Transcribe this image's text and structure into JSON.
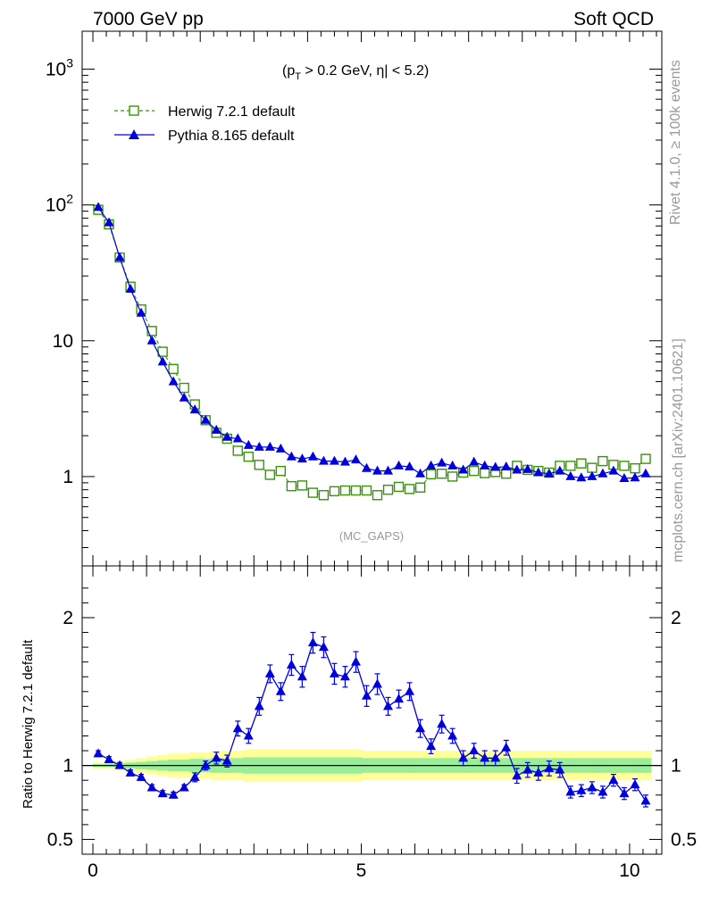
{
  "header": {
    "left": "7000 GeV pp",
    "right": "Soft QCD"
  },
  "side_text": {
    "rivet": "Rivet 4.1.0, ≥ 100k events",
    "mcplots": "mcplots.cern.ch [arXiv:2401.10621]"
  },
  "annotation": {
    "prefix": "(p",
    "sub": "T",
    "suffix": " > 0.2 GeV, η| < 5.2)"
  },
  "watermark": "(MC_GAPS)",
  "legend": {
    "herwig": "Herwig 7.2.1 default",
    "pythia": "Pythia 8.165 default"
  },
  "colors": {
    "herwig": "#339900",
    "pythia": "#0000dd",
    "band_inner": "#99ee99",
    "band_outer": "#ffff99"
  },
  "chart_data": [
    {
      "type": "scatter",
      "panel": "main",
      "yscale": "log",
      "ylim": [
        0.22,
        1900
      ],
      "xlim": [
        -0.2,
        10.6
      ],
      "yticks": [
        {
          "base": "10",
          "exp": "3",
          "value": 1000
        },
        {
          "base": "10",
          "exp": "2",
          "value": 100
        },
        {
          "base": "10",
          "exp": "",
          "value": 10
        },
        {
          "base": "1",
          "exp": "",
          "value": 1
        }
      ],
      "series": [
        {
          "name": "Herwig 7.2.1 default",
          "marker": "open-square",
          "line": "dashed",
          "x": [
            0.1,
            0.3,
            0.5,
            0.7,
            0.9,
            1.1,
            1.3,
            1.5,
            1.7,
            1.9,
            2.1,
            2.3,
            2.5,
            2.7,
            2.9,
            3.1,
            3.3,
            3.5,
            3.7,
            3.9,
            4.1,
            4.3,
            4.5,
            4.7,
            4.9,
            5.1,
            5.3,
            5.5,
            5.7,
            5.9,
            6.1,
            6.3,
            6.5,
            6.7,
            6.9,
            7.1,
            7.3,
            7.5,
            7.7,
            7.9,
            8.1,
            8.3,
            8.5,
            8.7,
            8.9,
            9.1,
            9.3,
            9.5,
            9.7,
            9.9,
            10.1,
            10.3
          ],
          "y": [
            92,
            72,
            41,
            25,
            17,
            11.8,
            8.3,
            6.2,
            4.5,
            3.4,
            2.6,
            2.1,
            1.9,
            1.55,
            1.4,
            1.22,
            1.03,
            1.1,
            0.85,
            0.86,
            0.76,
            0.73,
            0.78,
            0.79,
            0.79,
            0.79,
            0.73,
            0.8,
            0.84,
            0.81,
            0.83,
            1.04,
            1.05,
            1.0,
            1.07,
            1.1,
            1.06,
            1.08,
            1.05,
            1.2,
            1.12,
            1.1,
            1.07,
            1.2,
            1.2,
            1.25,
            1.16,
            1.3,
            1.22,
            1.2,
            1.15,
            1.35
          ]
        },
        {
          "name": "Pythia 8.165 default",
          "marker": "filled-triangle",
          "line": "solid",
          "x": [
            0.1,
            0.3,
            0.5,
            0.7,
            0.9,
            1.1,
            1.3,
            1.5,
            1.7,
            1.9,
            2.1,
            2.3,
            2.5,
            2.7,
            2.9,
            3.1,
            3.3,
            3.5,
            3.7,
            3.9,
            4.1,
            4.3,
            4.5,
            4.7,
            4.9,
            5.1,
            5.3,
            5.5,
            5.7,
            5.9,
            6.1,
            6.3,
            6.5,
            6.7,
            6.9,
            7.1,
            7.3,
            7.5,
            7.7,
            7.9,
            8.1,
            8.3,
            8.5,
            8.7,
            8.9,
            9.1,
            9.3,
            9.5,
            9.7,
            9.9,
            10.1,
            10.3
          ],
          "y": [
            96,
            74,
            41,
            24,
            16,
            10,
            7,
            5,
            3.8,
            3.1,
            2.6,
            2.2,
            1.95,
            1.9,
            1.7,
            1.65,
            1.65,
            1.6,
            1.4,
            1.35,
            1.4,
            1.3,
            1.3,
            1.28,
            1.33,
            1.15,
            1.1,
            1.1,
            1.2,
            1.18,
            1.05,
            1.2,
            1.26,
            1.2,
            1.12,
            1.28,
            1.2,
            1.17,
            1.18,
            1.12,
            1.13,
            1.07,
            1.05,
            1.1,
            1.0,
            0.98,
            1.0,
            1.05,
            1.1,
            0.97,
            0.98,
            1.05
          ]
        }
      ]
    },
    {
      "type": "line",
      "panel": "ratio",
      "ylabel": "Ratio to Herwig 7.2.1 default",
      "ylim": [
        0.4,
        2.35
      ],
      "xlim": [
        -0.2,
        10.6
      ],
      "yticks": [
        "0.5",
        "1",
        "2"
      ],
      "xticks": [
        "0",
        "5",
        "10"
      ],
      "reference": 1,
      "series": [
        {
          "name": "Pythia 8.165 default",
          "x": [
            0.1,
            0.3,
            0.5,
            0.7,
            0.9,
            1.1,
            1.3,
            1.5,
            1.7,
            1.9,
            2.1,
            2.3,
            2.5,
            2.7,
            2.9,
            3.1,
            3.3,
            3.5,
            3.7,
            3.9,
            4.1,
            4.3,
            4.5,
            4.7,
            4.9,
            5.1,
            5.3,
            5.5,
            5.7,
            5.9,
            6.1,
            6.3,
            6.5,
            6.7,
            6.9,
            7.1,
            7.3,
            7.5,
            7.7,
            7.9,
            8.1,
            8.3,
            8.5,
            8.7,
            8.9,
            9.1,
            9.3,
            9.5,
            9.7,
            9.9,
            10.1,
            10.3
          ],
          "y": [
            1.08,
            1.04,
            1.0,
            0.95,
            0.92,
            0.85,
            0.81,
            0.8,
            0.85,
            0.92,
            1.0,
            1.05,
            1.03,
            1.25,
            1.2,
            1.4,
            1.62,
            1.5,
            1.68,
            1.6,
            1.83,
            1.8,
            1.62,
            1.6,
            1.7,
            1.47,
            1.55,
            1.4,
            1.45,
            1.5,
            1.25,
            1.13,
            1.28,
            1.2,
            1.05,
            1.1,
            1.05,
            1.05,
            1.12,
            0.93,
            0.97,
            0.95,
            0.98,
            0.97,
            0.82,
            0.83,
            0.85,
            0.82,
            0.9,
            0.81,
            0.87,
            0.76
          ],
          "err": [
            0.02,
            0.02,
            0.02,
            0.02,
            0.02,
            0.02,
            0.02,
            0.02,
            0.02,
            0.03,
            0.03,
            0.04,
            0.04,
            0.05,
            0.05,
            0.06,
            0.06,
            0.06,
            0.07,
            0.07,
            0.07,
            0.07,
            0.07,
            0.07,
            0.07,
            0.07,
            0.07,
            0.06,
            0.06,
            0.06,
            0.06,
            0.05,
            0.06,
            0.05,
            0.05,
            0.05,
            0.05,
            0.05,
            0.05,
            0.05,
            0.05,
            0.05,
            0.05,
            0.05,
            0.04,
            0.04,
            0.04,
            0.04,
            0.04,
            0.04,
            0.04,
            0.04
          ]
        }
      ],
      "band_outer": [
        0.02,
        0.02,
        0.03,
        0.04,
        0.05,
        0.06,
        0.07,
        0.08,
        0.08,
        0.09,
        0.09,
        0.1,
        0.1,
        0.1,
        0.11,
        0.11,
        0.11,
        0.11,
        0.11,
        0.11,
        0.11,
        0.11,
        0.11,
        0.11,
        0.11,
        0.1,
        0.1,
        0.1,
        0.1,
        0.1,
        0.1,
        0.1,
        0.1,
        0.1,
        0.1,
        0.1,
        0.1,
        0.1,
        0.1,
        0.1,
        0.1,
        0.1,
        0.1,
        0.1,
        0.1,
        0.1,
        0.1,
        0.1,
        0.1,
        0.1,
        0.1,
        0.1
      ],
      "band_inner": [
        0.01,
        0.01,
        0.015,
        0.02,
        0.025,
        0.03,
        0.035,
        0.04,
        0.04,
        0.045,
        0.045,
        0.05,
        0.05,
        0.05,
        0.055,
        0.055,
        0.055,
        0.055,
        0.055,
        0.055,
        0.055,
        0.055,
        0.055,
        0.055,
        0.055,
        0.05,
        0.05,
        0.05,
        0.05,
        0.05,
        0.05,
        0.05,
        0.05,
        0.05,
        0.05,
        0.05,
        0.05,
        0.05,
        0.05,
        0.05,
        0.05,
        0.05,
        0.05,
        0.05,
        0.05,
        0.05,
        0.05,
        0.05,
        0.05,
        0.05,
        0.05,
        0.05
      ]
    }
  ]
}
